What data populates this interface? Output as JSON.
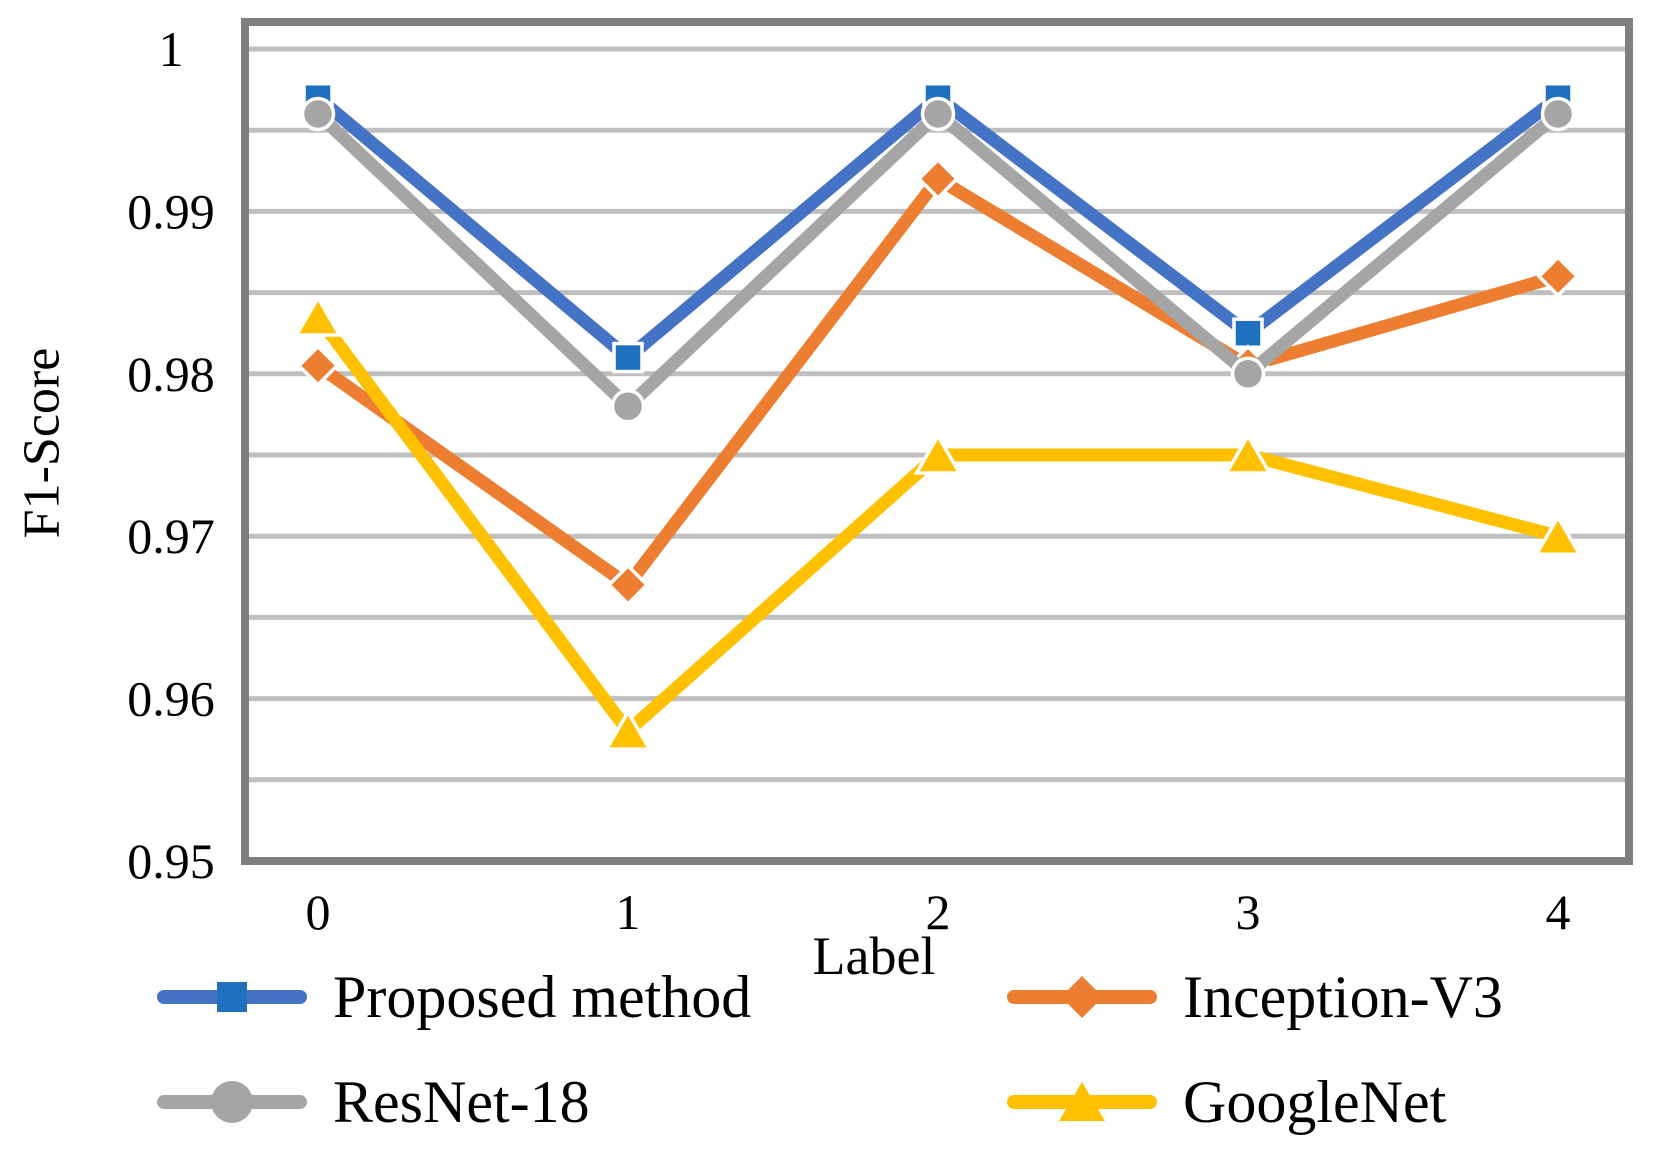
{
  "chart_data": {
    "type": "line",
    "title": "",
    "xlabel": "Label",
    "ylabel": "F1-Score",
    "x": [
      0,
      1,
      2,
      3,
      4
    ],
    "x_tick_labels": [
      "0",
      "1",
      "2",
      "3",
      "4"
    ],
    "y_ticks": [
      1.0,
      0.99,
      0.98,
      0.97,
      0.96,
      0.95
    ],
    "y_tick_labels": [
      "1",
      "0.99",
      "0.98",
      "0.97",
      "0.96",
      "0.95"
    ],
    "ylim": [
      0.95,
      1.0
    ],
    "gridline_step": 0.005,
    "grid": "horizontal",
    "legend_position": "bottom",
    "series": [
      {
        "name": "Proposed method",
        "marker": "square",
        "line_color": "#4472C4",
        "marker_color": "#1F70BE",
        "values": [
          0.997,
          0.981,
          0.997,
          0.9825,
          0.997
        ]
      },
      {
        "name": "Inception-V3",
        "marker": "diamond",
        "line_color": "#ED7D31",
        "marker_color": "#ED7D31",
        "values": [
          0.9805,
          0.967,
          0.992,
          0.9805,
          0.986
        ]
      },
      {
        "name": "ResNet-18",
        "marker": "circle",
        "line_color": "#A5A5A5",
        "marker_color": "#A5A5A5",
        "values": [
          0.996,
          0.978,
          0.996,
          0.98,
          0.996
        ]
      },
      {
        "name": "GoogleNet",
        "marker": "triangle",
        "line_color": "#FFC000",
        "marker_color": "#FFC000",
        "values": [
          0.9835,
          0.958,
          0.975,
          0.975,
          0.97
        ]
      }
    ],
    "colors": {
      "axis_border": "#7F7F7F",
      "gridline": "#BFBFBF",
      "text": "#000000",
      "background": "#FFFFFF"
    }
  }
}
